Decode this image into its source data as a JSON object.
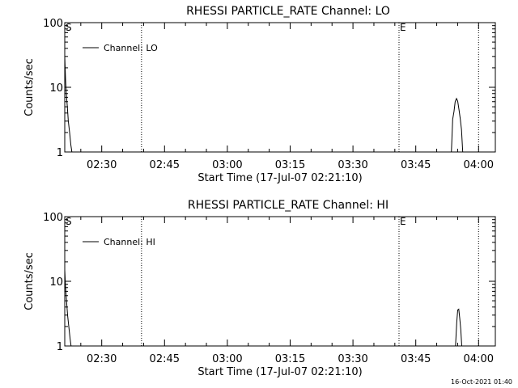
{
  "footer_timestamp": "16-Oct-2021 01:40",
  "chart_data": [
    {
      "type": "line",
      "title": "RHESSI PARTICLE_RATE Channel: LO",
      "xlabel": "Start Time (17-Jul-07 02:21:10)",
      "ylabel": "Counts/sec",
      "legend": {
        "label": "Channel: LO",
        "placement": "top-left"
      },
      "yscale": "log",
      "ylim": [
        1,
        100
      ],
      "y_ticks": [
        1,
        10,
        100
      ],
      "y_tick_labels": [
        "1",
        "10",
        "100"
      ],
      "xlim": [
        2.3528,
        4.0667
      ],
      "x_ticks": [
        2.5,
        2.75,
        3.0,
        3.25,
        3.5,
        3.75,
        4.0
      ],
      "x_tick_labels": [
        "02:30",
        "02:45",
        "03:00",
        "03:15",
        "03:30",
        "03:45",
        "04:00"
      ],
      "vlines": [
        {
          "x": 2.6583,
          "label": ""
        },
        {
          "x": 3.6833,
          "label": ""
        },
        {
          "x": 4.0,
          "label": ""
        }
      ],
      "markers": [
        {
          "x": 2.3528,
          "label": "S"
        },
        {
          "x": 3.6833,
          "label": "E"
        }
      ],
      "series": [
        {
          "name": "Channel: LO",
          "points": [
            [
              2.3528,
              30
            ],
            [
              2.356,
              13
            ],
            [
              2.359,
              8
            ],
            [
              2.363,
              5
            ],
            [
              2.367,
              3
            ],
            [
              2.372,
              2
            ],
            [
              2.377,
              1.3
            ],
            [
              2.381,
              1
            ]
          ]
        },
        {
          "name": "Channel: LO",
          "points": [
            [
              3.8917,
              1
            ],
            [
              3.897,
              3.2
            ],
            [
              3.902,
              4.2
            ],
            [
              3.907,
              6
            ],
            [
              3.912,
              6.7
            ],
            [
              3.917,
              6.1
            ],
            [
              3.922,
              4.5
            ],
            [
              3.927,
              3.3
            ],
            [
              3.932,
              2.2
            ],
            [
              3.937,
              1
            ]
          ]
        }
      ]
    },
    {
      "type": "line",
      "title": "RHESSI PARTICLE_RATE Channel: HI",
      "xlabel": "Start Time (17-Jul-07 02:21:10)",
      "ylabel": "Counts/sec",
      "legend": {
        "label": "Channel: HI",
        "placement": "top-left"
      },
      "yscale": "log",
      "ylim": [
        1,
        100
      ],
      "y_ticks": [
        1,
        10,
        100
      ],
      "y_tick_labels": [
        "1",
        "10",
        "100"
      ],
      "xlim": [
        2.3528,
        4.0667
      ],
      "x_ticks": [
        2.5,
        2.75,
        3.0,
        3.25,
        3.5,
        3.75,
        4.0
      ],
      "x_tick_labels": [
        "02:30",
        "02:45",
        "03:00",
        "03:15",
        "03:30",
        "03:45",
        "04:00"
      ],
      "vlines": [
        {
          "x": 2.6583,
          "label": ""
        },
        {
          "x": 3.6833,
          "label": ""
        },
        {
          "x": 4.0,
          "label": ""
        }
      ],
      "markers": [
        {
          "x": 2.3528,
          "label": "S"
        },
        {
          "x": 3.6833,
          "label": "E"
        }
      ],
      "series": [
        {
          "name": "Channel: HI",
          "points": [
            [
              2.3528,
              15
            ],
            [
              2.356,
              8
            ],
            [
              2.36,
              5
            ],
            [
              2.364,
              3
            ],
            [
              2.369,
              2
            ],
            [
              2.374,
              1.3
            ],
            [
              2.378,
              1
            ]
          ]
        },
        {
          "name": "Channel: HI",
          "points": [
            [
              3.9083,
              1
            ],
            [
              3.913,
              2.3
            ],
            [
              3.917,
              3.6
            ],
            [
              3.921,
              3.7
            ],
            [
              3.925,
              2.7
            ],
            [
              3.929,
              1.8
            ],
            [
              3.933,
              1
            ]
          ]
        }
      ]
    }
  ]
}
